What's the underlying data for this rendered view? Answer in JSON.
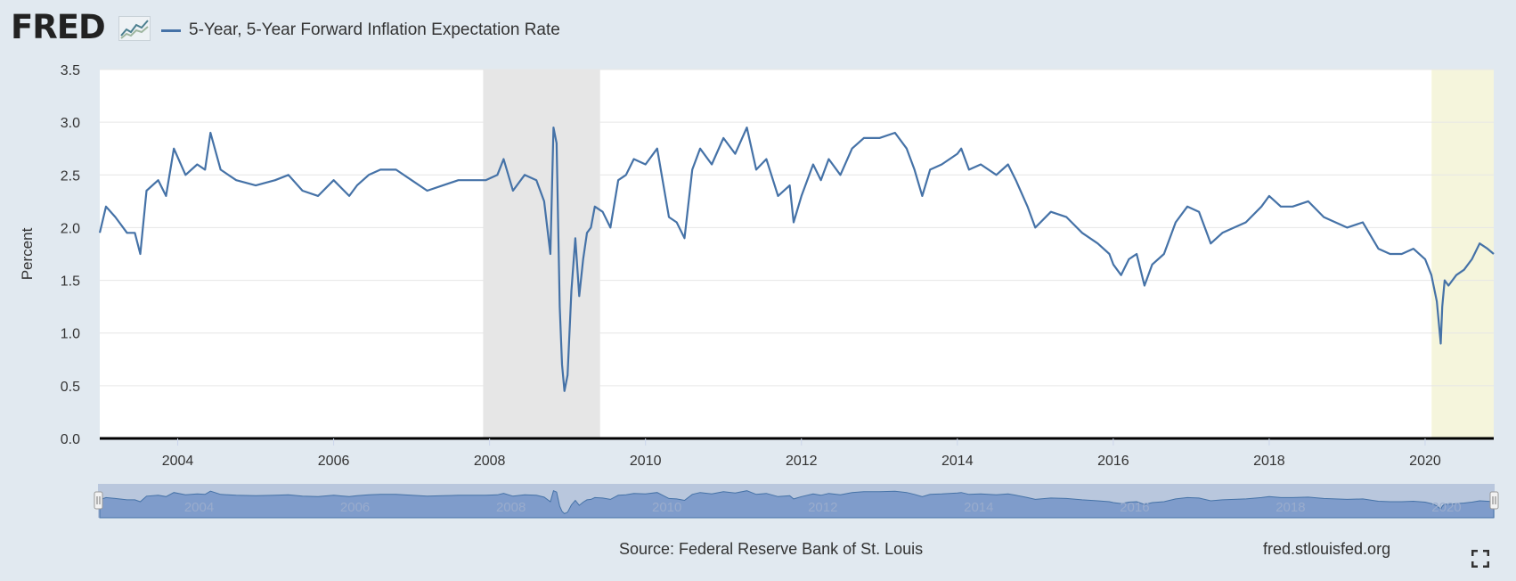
{
  "header": {
    "logo_text": "FRED",
    "logo_graph_icon": "trend-chart-icon"
  },
  "legend": {
    "series_label": "5-Year, 5-Year Forward Inflation Expectation Rate",
    "color": "#4572a7"
  },
  "footer": {
    "source": "Source: Federal Reserve Bank of St. Louis",
    "site": "fred.stlouisfed.org",
    "fullscreen_icon": "fullscreen-icon"
  },
  "colors": {
    "background": "#e1e9f0",
    "plot_background": "#ffffff",
    "line": "#4572a7",
    "recession_shade": "#e6e6e6",
    "highlight_shade": "#f5f5dc",
    "navigator_fill": "#7f9ccb"
  },
  "chart_data": {
    "type": "line",
    "title": "",
    "xlabel": "",
    "ylabel": "Percent",
    "x_unit": "year",
    "xlim": [
      2003.0,
      2020.88
    ],
    "ylim": [
      0,
      3.5
    ],
    "yticks": [
      0.0,
      0.5,
      1.0,
      1.5,
      2.0,
      2.5,
      3.0,
      3.5
    ],
    "ytick_labels": [
      "0.0",
      "0.5",
      "1.0",
      "1.5",
      "2.0",
      "2.5",
      "3.0",
      "3.5"
    ],
    "xticks": [
      2004,
      2006,
      2008,
      2010,
      2012,
      2014,
      2016,
      2018,
      2020
    ],
    "xtick_labels": [
      "2004",
      "2006",
      "2008",
      "2010",
      "2012",
      "2014",
      "2016",
      "2018",
      "2020"
    ],
    "grid": true,
    "legend_position": "top-left",
    "shaded_regions": [
      {
        "start": 2007.917,
        "end": 2009.417,
        "kind": "recession"
      },
      {
        "start": 2020.083,
        "end": 2020.88,
        "kind": "highlight"
      }
    ],
    "series": [
      {
        "name": "5-Year, 5-Year Forward Inflation Expectation Rate",
        "x": [
          2003.0,
          2003.08,
          2003.2,
          2003.35,
          2003.45,
          2003.52,
          2003.6,
          2003.75,
          2003.85,
          2003.95,
          2004.1,
          2004.25,
          2004.35,
          2004.42,
          2004.55,
          2004.75,
          2005.0,
          2005.25,
          2005.42,
          2005.6,
          2005.8,
          2006.0,
          2006.2,
          2006.3,
          2006.45,
          2006.6,
          2006.8,
          2007.0,
          2007.2,
          2007.4,
          2007.6,
          2007.8,
          2007.95,
          2008.1,
          2008.18,
          2008.3,
          2008.45,
          2008.6,
          2008.7,
          2008.78,
          2008.82,
          2008.86,
          2008.9,
          2008.93,
          2008.96,
          2009.0,
          2009.05,
          2009.1,
          2009.15,
          2009.2,
          2009.25,
          2009.3,
          2009.35,
          2009.45,
          2009.55,
          2009.65,
          2009.75,
          2009.85,
          2010.0,
          2010.15,
          2010.3,
          2010.4,
          2010.5,
          2010.6,
          2010.7,
          2010.85,
          2011.0,
          2011.15,
          2011.3,
          2011.42,
          2011.55,
          2011.7,
          2011.85,
          2011.9,
          2012.0,
          2012.15,
          2012.25,
          2012.35,
          2012.5,
          2012.65,
          2012.8,
          2013.0,
          2013.2,
          2013.35,
          2013.45,
          2013.55,
          2013.65,
          2013.8,
          2014.0,
          2014.05,
          2014.15,
          2014.3,
          2014.5,
          2014.65,
          2014.75,
          2014.9,
          2015.0,
          2015.2,
          2015.4,
          2015.6,
          2015.8,
          2015.95,
          2016.0,
          2016.1,
          2016.2,
          2016.3,
          2016.4,
          2016.5,
          2016.65,
          2016.8,
          2016.95,
          2017.1,
          2017.25,
          2017.4,
          2017.55,
          2017.7,
          2017.9,
          2018.0,
          2018.15,
          2018.3,
          2018.5,
          2018.7,
          2018.85,
          2019.0,
          2019.2,
          2019.4,
          2019.55,
          2019.7,
          2019.85,
          2020.0,
          2020.08,
          2020.15,
          2020.2,
          2020.22,
          2020.25,
          2020.3,
          2020.4,
          2020.5,
          2020.6,
          2020.7,
          2020.8,
          2020.88
        ],
        "y": [
          1.95,
          2.2,
          2.1,
          1.95,
          1.95,
          1.75,
          2.35,
          2.45,
          2.3,
          2.75,
          2.5,
          2.6,
          2.55,
          2.9,
          2.55,
          2.45,
          2.4,
          2.45,
          2.5,
          2.35,
          2.3,
          2.45,
          2.3,
          2.4,
          2.5,
          2.55,
          2.55,
          2.45,
          2.35,
          2.4,
          2.45,
          2.45,
          2.45,
          2.5,
          2.65,
          2.35,
          2.5,
          2.45,
          2.25,
          1.75,
          2.95,
          2.8,
          1.25,
          0.7,
          0.45,
          0.6,
          1.4,
          1.9,
          1.35,
          1.7,
          1.95,
          2.0,
          2.2,
          2.15,
          2.0,
          2.45,
          2.5,
          2.65,
          2.6,
          2.75,
          2.1,
          2.05,
          1.9,
          2.55,
          2.75,
          2.6,
          2.85,
          2.7,
          2.95,
          2.55,
          2.65,
          2.3,
          2.4,
          2.05,
          2.3,
          2.6,
          2.45,
          2.65,
          2.5,
          2.75,
          2.85,
          2.85,
          2.9,
          2.75,
          2.55,
          2.3,
          2.55,
          2.6,
          2.7,
          2.75,
          2.55,
          2.6,
          2.5,
          2.6,
          2.45,
          2.2,
          2.0,
          2.15,
          2.1,
          1.95,
          1.85,
          1.75,
          1.65,
          1.55,
          1.7,
          1.75,
          1.45,
          1.65,
          1.75,
          2.05,
          2.2,
          2.15,
          1.85,
          1.95,
          2.0,
          2.05,
          2.2,
          2.3,
          2.2,
          2.2,
          2.25,
          2.1,
          2.05,
          2.0,
          2.05,
          1.8,
          1.75,
          1.75,
          1.8,
          1.7,
          1.55,
          1.3,
          0.9,
          1.25,
          1.5,
          1.45,
          1.55,
          1.6,
          1.7,
          1.85,
          1.8,
          1.75
        ]
      }
    ]
  }
}
